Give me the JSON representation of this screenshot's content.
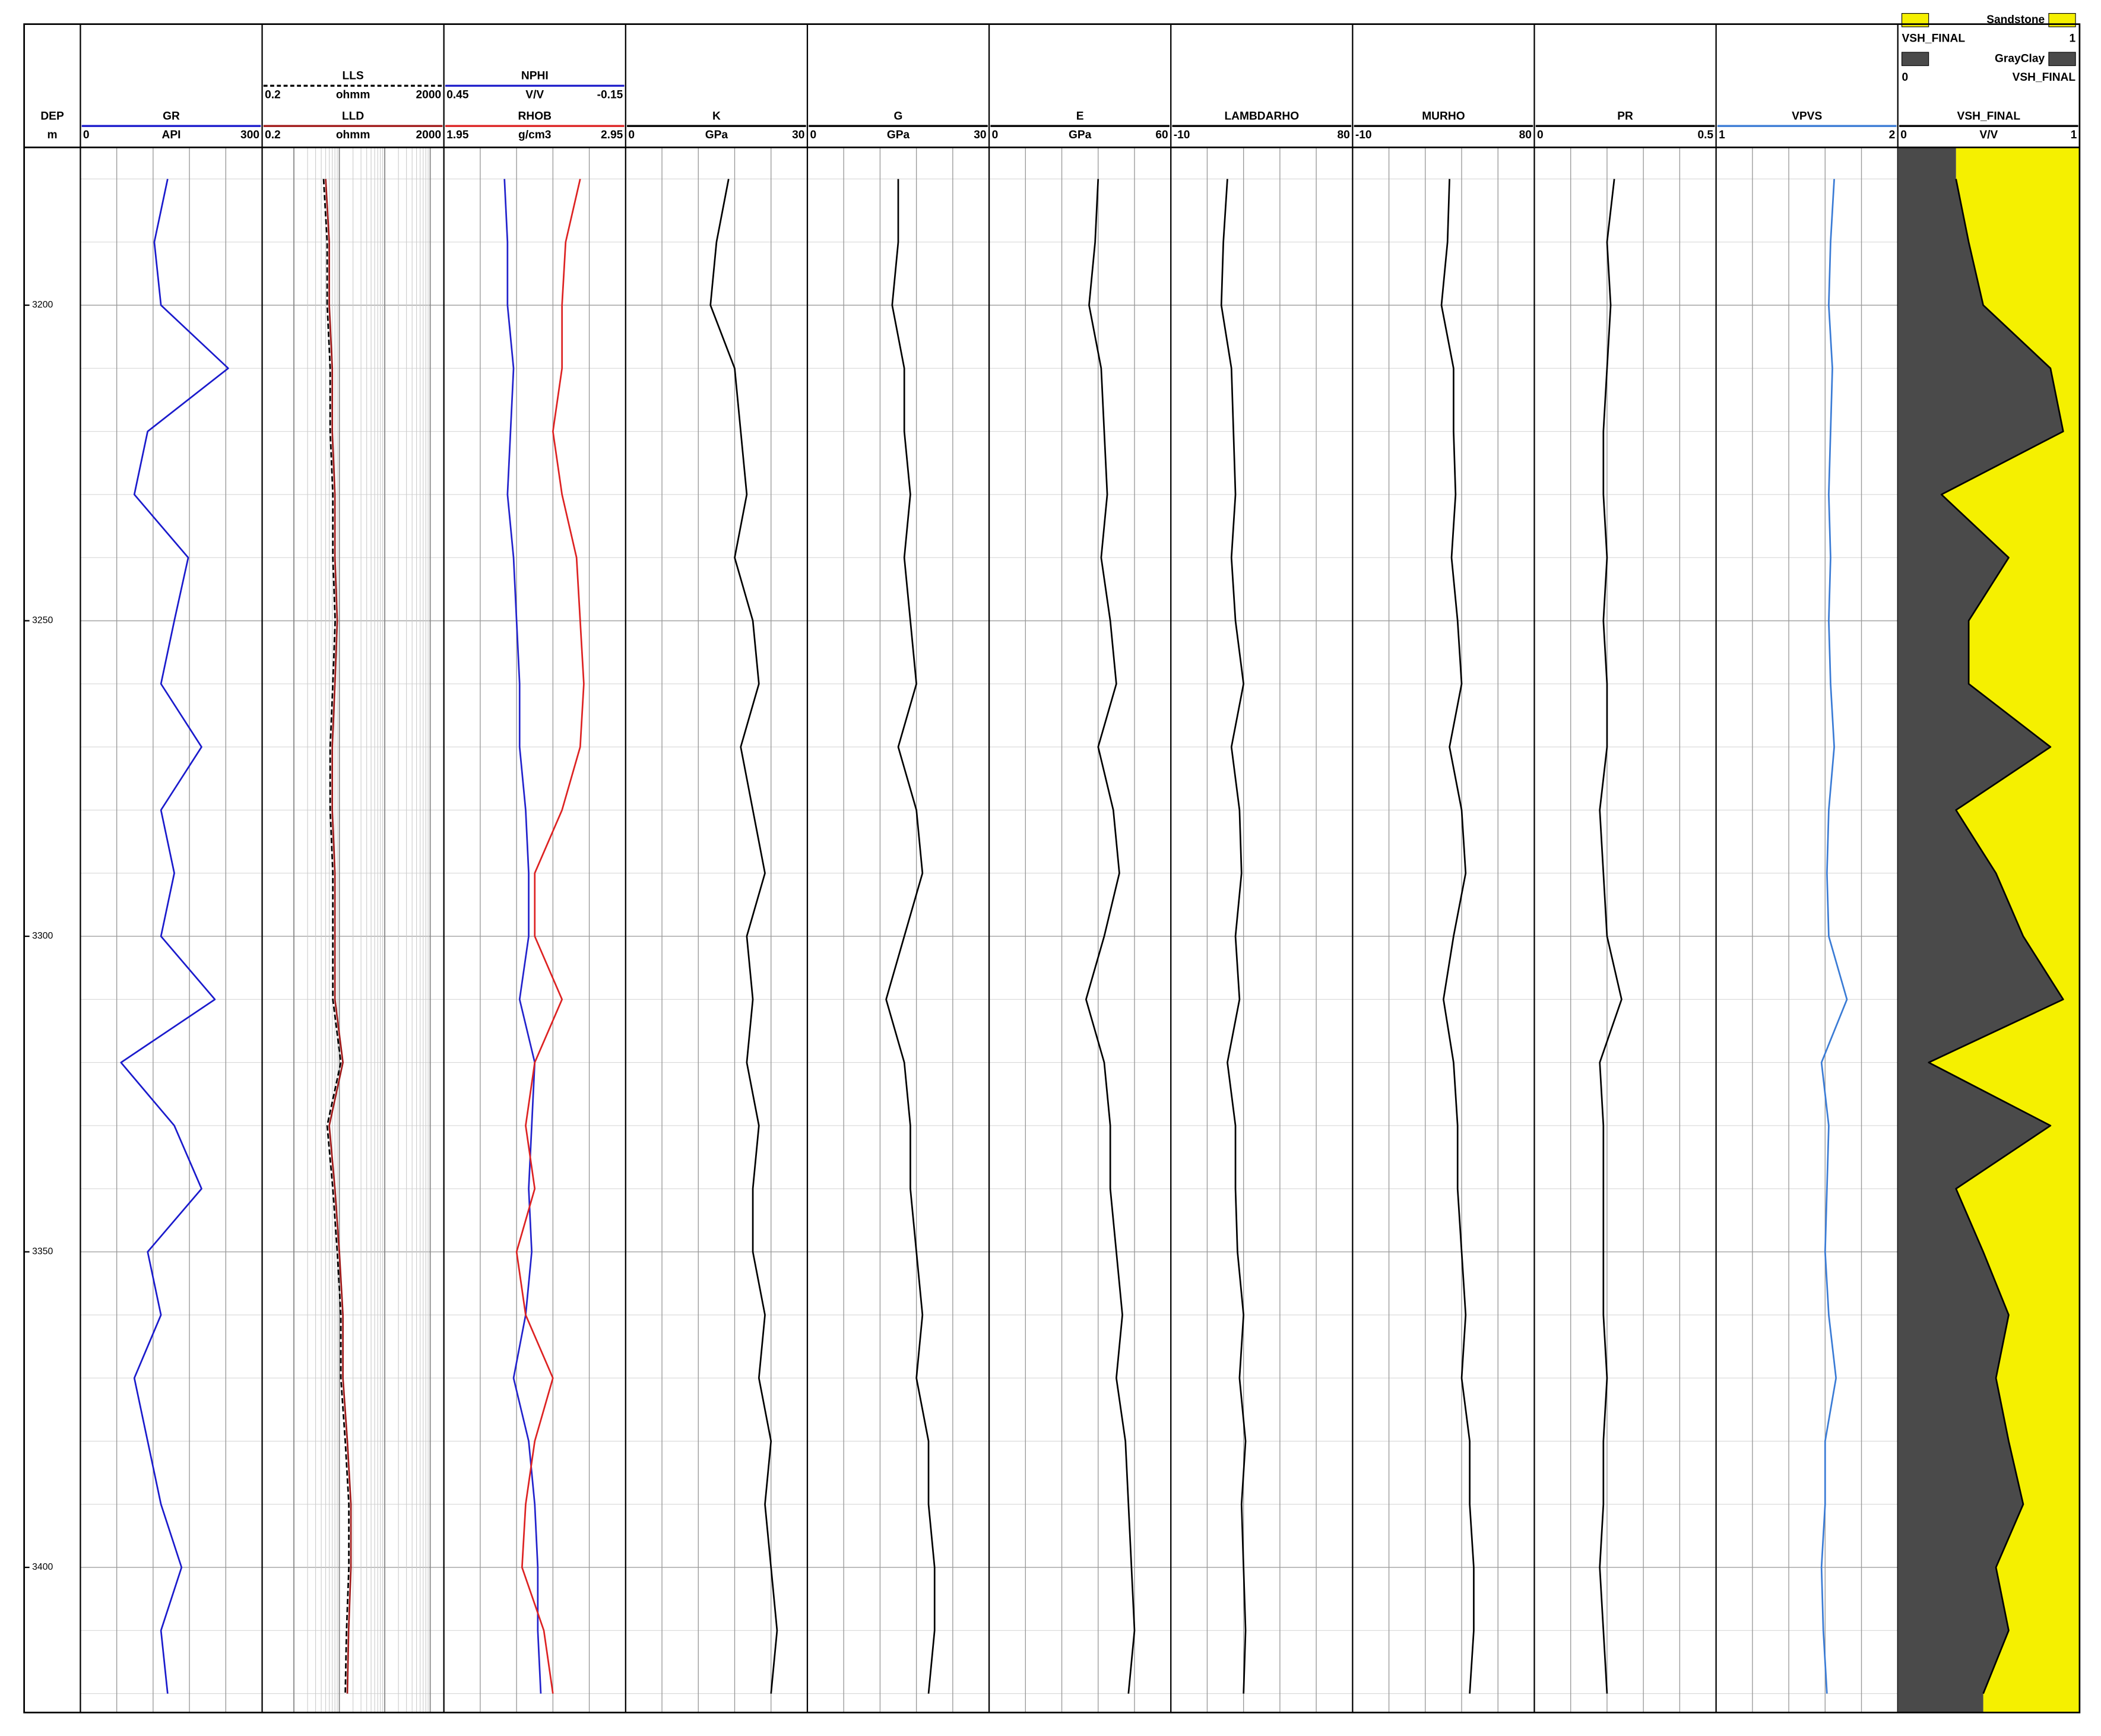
{
  "chart_data": {
    "type": "well-log",
    "depth_label": "DEP",
    "depth_unit": "m",
    "ylim": [
      3175,
      3423
    ],
    "yticks": [
      3200,
      3250,
      3300,
      3350,
      3400
    ],
    "depths": [
      3180,
      3190,
      3200,
      3210,
      3220,
      3230,
      3240,
      3250,
      3260,
      3270,
      3280,
      3290,
      3300,
      3310,
      3320,
      3330,
      3340,
      3350,
      3360,
      3370,
      3380,
      3390,
      3400,
      3410,
      3420
    ],
    "tracks": [
      {
        "curves": [
          {
            "name": "GR",
            "unit": "API",
            "xlim": [
              0,
              300
            ],
            "color": "#1a1acc",
            "values": [
              144,
              122,
              133,
              244,
              111,
              89,
              178,
              155,
              133,
              200,
              133,
              155,
              133,
              222,
              67,
              155,
              200,
              111,
              133,
              89,
              111,
              133,
              167,
              133,
              144
            ]
          }
        ]
      },
      {
        "scale": "log",
        "curves": [
          {
            "name": "LLS",
            "unit": "ohmm",
            "xlim": [
              0.2,
              2000
            ],
            "color": "#000000",
            "line_style": "dashed",
            "values": [
              4.5,
              5.4,
              5.4,
              6.3,
              6.3,
              7.2,
              7.2,
              8.1,
              7.2,
              6.3,
              6.3,
              7.2,
              7.2,
              7.2,
              10.8,
              5.4,
              7.2,
              9,
              10.8,
              10.8,
              13.5,
              16.2,
              16.2,
              14.4,
              13.5
            ]
          },
          {
            "name": "LLD",
            "unit": "ohmm",
            "xlim": [
              0.2,
              2000
            ],
            "color": "#a01818",
            "values": [
              5,
              6,
              6,
              7,
              7,
              8,
              8,
              9,
              8,
              7,
              7,
              8,
              8,
              8,
              12,
              6,
              8,
              10,
              12,
              12,
              15,
              18,
              18,
              16,
              15
            ]
          }
        ]
      },
      {
        "curves": [
          {
            "name": "NPHI",
            "unit": "V/V",
            "xlim": [
              0.45,
              -0.15
            ],
            "color": "#2222cc",
            "values": [
              0.25,
              0.24,
              0.24,
              0.22,
              0.23,
              0.24,
              0.22,
              0.21,
              0.2,
              0.2,
              0.18,
              0.17,
              0.17,
              0.2,
              0.15,
              0.16,
              0.17,
              0.16,
              0.18,
              0.22,
              0.17,
              0.15,
              0.14,
              0.14,
              0.13
            ]
          },
          {
            "name": "RHOB",
            "unit": "g/cm3",
            "xlim": [
              1.95,
              2.95
            ],
            "color": "#dd2222",
            "values": [
              2.7,
              2.62,
              2.6,
              2.6,
              2.55,
              2.6,
              2.68,
              2.7,
              2.72,
              2.7,
              2.6,
              2.45,
              2.45,
              2.6,
              2.45,
              2.4,
              2.45,
              2.35,
              2.4,
              2.55,
              2.45,
              2.4,
              2.38,
              2.5,
              2.55
            ]
          }
        ]
      },
      {
        "curves": [
          {
            "name": "K",
            "unit": "GPa",
            "xlim": [
              0,
              30
            ],
            "color": "#000000",
            "values": [
              17,
              15,
              14,
              18,
              19,
              20,
              18,
              21,
              22,
              19,
              21,
              23,
              20,
              21,
              20,
              22,
              21,
              21,
              23,
              22,
              24,
              23,
              24,
              25,
              24
            ]
          }
        ]
      },
      {
        "curves": [
          {
            "name": "G",
            "unit": "GPa",
            "xlim": [
              0,
              30
            ],
            "color": "#000000",
            "values": [
              15,
              15,
              14,
              16,
              16,
              17,
              16,
              17,
              18,
              15,
              18,
              19,
              16,
              13,
              16,
              17,
              17,
              18,
              19,
              18,
              20,
              20,
              21,
              21,
              20
            ]
          }
        ]
      },
      {
        "curves": [
          {
            "name": "E",
            "unit": "GPa",
            "xlim": [
              0,
              60
            ],
            "color": "#000000",
            "values": [
              36,
              35,
              33,
              37,
              38,
              39,
              37,
              40,
              42,
              36,
              41,
              43,
              38,
              32,
              38,
              40,
              40,
              42,
              44,
              42,
              45,
              46,
              47,
              48,
              46
            ]
          }
        ]
      },
      {
        "curves": [
          {
            "name": "LAMBDARHO",
            "xlim": [
              -10,
              80
            ],
            "color": "#000000",
            "values": [
              18,
              16,
              15,
              20,
              21,
              22,
              20,
              22,
              26,
              20,
              24,
              25,
              22,
              24,
              18,
              22,
              22,
              23,
              26,
              24,
              27,
              25,
              26,
              27,
              26
            ]
          }
        ]
      },
      {
        "curves": [
          {
            "name": "MURHO",
            "xlim": [
              -10,
              80
            ],
            "color": "#000000",
            "values": [
              38,
              37,
              34,
              40,
              40,
              41,
              39,
              42,
              44,
              38,
              44,
              46,
              40,
              35,
              40,
              42,
              42,
              44,
              46,
              44,
              48,
              48,
              50,
              50,
              48
            ]
          }
        ]
      },
      {
        "curves": [
          {
            "name": "PR",
            "xlim": [
              0,
              0.5
            ],
            "color": "#000000",
            "values": [
              0.22,
              0.2,
              0.21,
              0.2,
              0.19,
              0.19,
              0.2,
              0.19,
              0.2,
              0.2,
              0.18,
              0.19,
              0.2,
              0.24,
              0.18,
              0.19,
              0.19,
              0.19,
              0.19,
              0.2,
              0.19,
              0.19,
              0.18,
              0.19,
              0.2
            ]
          }
        ]
      },
      {
        "curves": [
          {
            "name": "VPVS",
            "xlim": [
              1,
              2
            ],
            "color": "#3a7bd5",
            "values": [
              1.65,
              1.63,
              1.62,
              1.64,
              1.63,
              1.62,
              1.63,
              1.62,
              1.63,
              1.65,
              1.62,
              1.61,
              1.62,
              1.72,
              1.58,
              1.62,
              1.61,
              1.6,
              1.62,
              1.66,
              1.6,
              1.6,
              1.58,
              1.59,
              1.61
            ]
          }
        ]
      },
      {
        "curves": [
          {
            "name": "VSH_FINAL",
            "unit": "V/V",
            "xlim": [
              0,
              1
            ],
            "color": "#000000",
            "values": [
              0.32,
              0.39,
              0.47,
              0.84,
              0.91,
              0.24,
              0.61,
              0.39,
              0.39,
              0.84,
              0.32,
              0.54,
              0.69,
              0.91,
              0.17,
              0.84,
              0.32,
              0.47,
              0.61,
              0.54,
              0.61,
              0.69,
              0.54,
              0.61,
              0.47
            ]
          }
        ],
        "fills": [
          {
            "name": "Sandstone",
            "color": "#f5f000",
            "curve": "VSH_FINAL",
            "limit": 1
          },
          {
            "name": "GrayClay",
            "color": "#4a4a4a",
            "curve": "VSH_FINAL",
            "limit": 0
          }
        ]
      }
    ]
  }
}
